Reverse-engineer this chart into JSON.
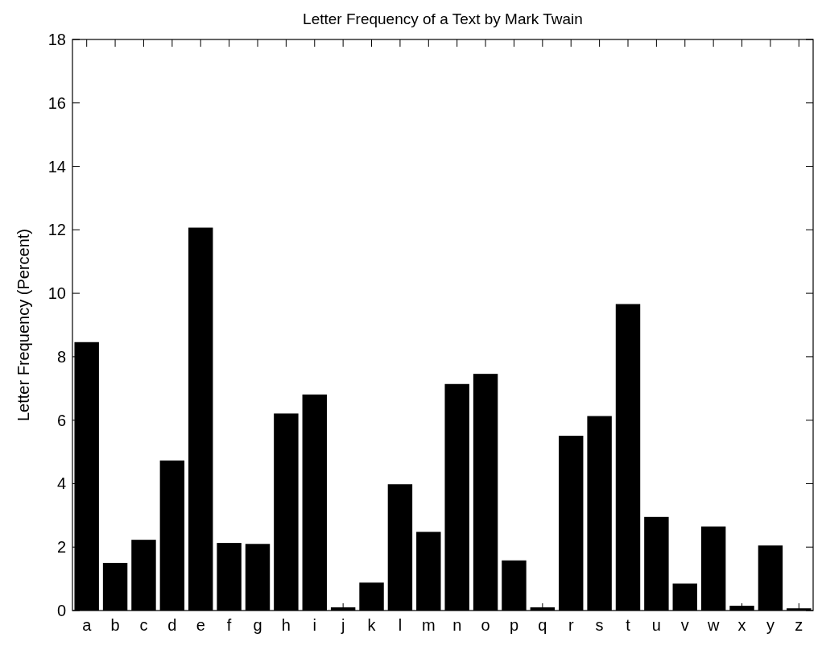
{
  "chart_data": {
    "type": "bar",
    "title": "Letter Frequency of a Text by Mark Twain",
    "ylabel": "Letter Frequency (Percent)",
    "categories": [
      "a",
      "b",
      "c",
      "d",
      "e",
      "f",
      "g",
      "h",
      "i",
      "j",
      "k",
      "l",
      "m",
      "n",
      "o",
      "p",
      "q",
      "r",
      "s",
      "t",
      "u",
      "v",
      "w",
      "x",
      "y",
      "z"
    ],
    "values": [
      8.46,
      1.5,
      2.23,
      4.73,
      12.07,
      2.13,
      2.1,
      6.21,
      6.81,
      0.1,
      0.88,
      3.98,
      2.48,
      7.14,
      7.46,
      1.58,
      0.1,
      5.51,
      6.13,
      9.66,
      2.95,
      0.85,
      2.65,
      0.15,
      2.05,
      0.07
    ],
    "color": "#000000",
    "ylim": [
      0,
      18
    ],
    "yticks": [
      0,
      2,
      4,
      6,
      8,
      10,
      12,
      14,
      16,
      18
    ],
    "grid": false
  }
}
